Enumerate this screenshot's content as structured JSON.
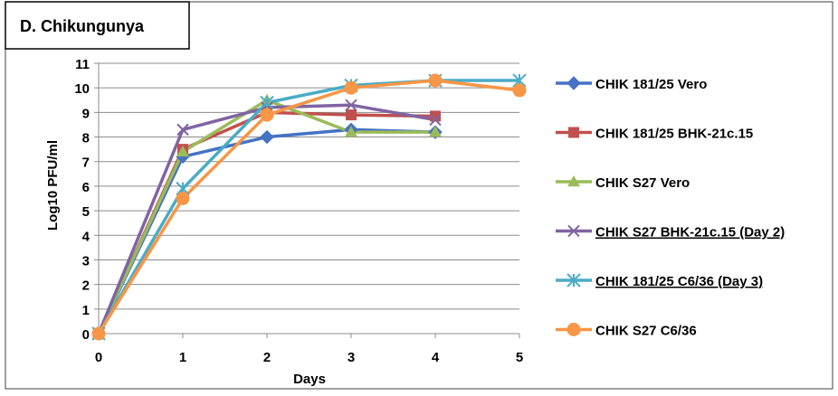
{
  "chart_data": {
    "type": "line",
    "title": "D. Chikungunya",
    "xlabel": "Days",
    "ylabel": "Log10 PFU/ml",
    "x": [
      0,
      1,
      2,
      3,
      4,
      5
    ],
    "xlim": [
      0,
      5
    ],
    "ylim": [
      0,
      11
    ],
    "yticks": [
      0,
      1,
      2,
      3,
      4,
      5,
      6,
      7,
      8,
      9,
      10,
      11
    ],
    "xticks": [
      0,
      1,
      2,
      3,
      4,
      5
    ],
    "grid": true,
    "legend_position": "right",
    "series": [
      {
        "name": "CHIK 181/25 Vero",
        "color": "#4472C4",
        "marker": "diamond",
        "underline": false,
        "points": [
          [
            0,
            0
          ],
          [
            1,
            7.2
          ],
          [
            2,
            8.0
          ],
          [
            3,
            8.3
          ],
          [
            4,
            8.2
          ]
        ]
      },
      {
        "name": "CHIK 181/25 BHK-21c.15",
        "color": "#C0504D",
        "marker": "square",
        "underline": false,
        "points": [
          [
            0,
            0
          ],
          [
            1,
            7.5
          ],
          [
            2,
            9.0
          ],
          [
            3,
            8.9
          ],
          [
            4,
            8.85
          ]
        ]
      },
      {
        "name": "CHIK S27 Vero",
        "color": "#9BBB59",
        "marker": "triangle",
        "underline": false,
        "points": [
          [
            0,
            0
          ],
          [
            1,
            7.4
          ],
          [
            2,
            9.5
          ],
          [
            3,
            8.2
          ],
          [
            4,
            8.2
          ]
        ]
      },
      {
        "name": "CHIK S27 BHK-21c.15 (Day 2)",
        "color": "#8064A2",
        "marker": "x",
        "underline": true,
        "points": [
          [
            0,
            0
          ],
          [
            1,
            8.3
          ],
          [
            2,
            9.2
          ],
          [
            3,
            9.3
          ],
          [
            4,
            8.7
          ]
        ]
      },
      {
        "name": "CHIK 181/25 C6/36 (Day 3)",
        "color": "#4BACC6",
        "marker": "star",
        "underline": true,
        "points": [
          [
            0,
            0
          ],
          [
            1,
            5.9
          ],
          [
            2,
            9.4
          ],
          [
            3,
            10.1
          ],
          [
            4,
            10.3
          ],
          [
            5,
            10.3
          ]
        ]
      },
      {
        "name": "CHIK S27 C6/36",
        "color": "#F79646",
        "marker": "circle",
        "underline": false,
        "points": [
          [
            0,
            0
          ],
          [
            1,
            5.5
          ],
          [
            2,
            8.9
          ],
          [
            3,
            10.0
          ],
          [
            4,
            10.3
          ],
          [
            5,
            9.9
          ]
        ]
      }
    ]
  }
}
